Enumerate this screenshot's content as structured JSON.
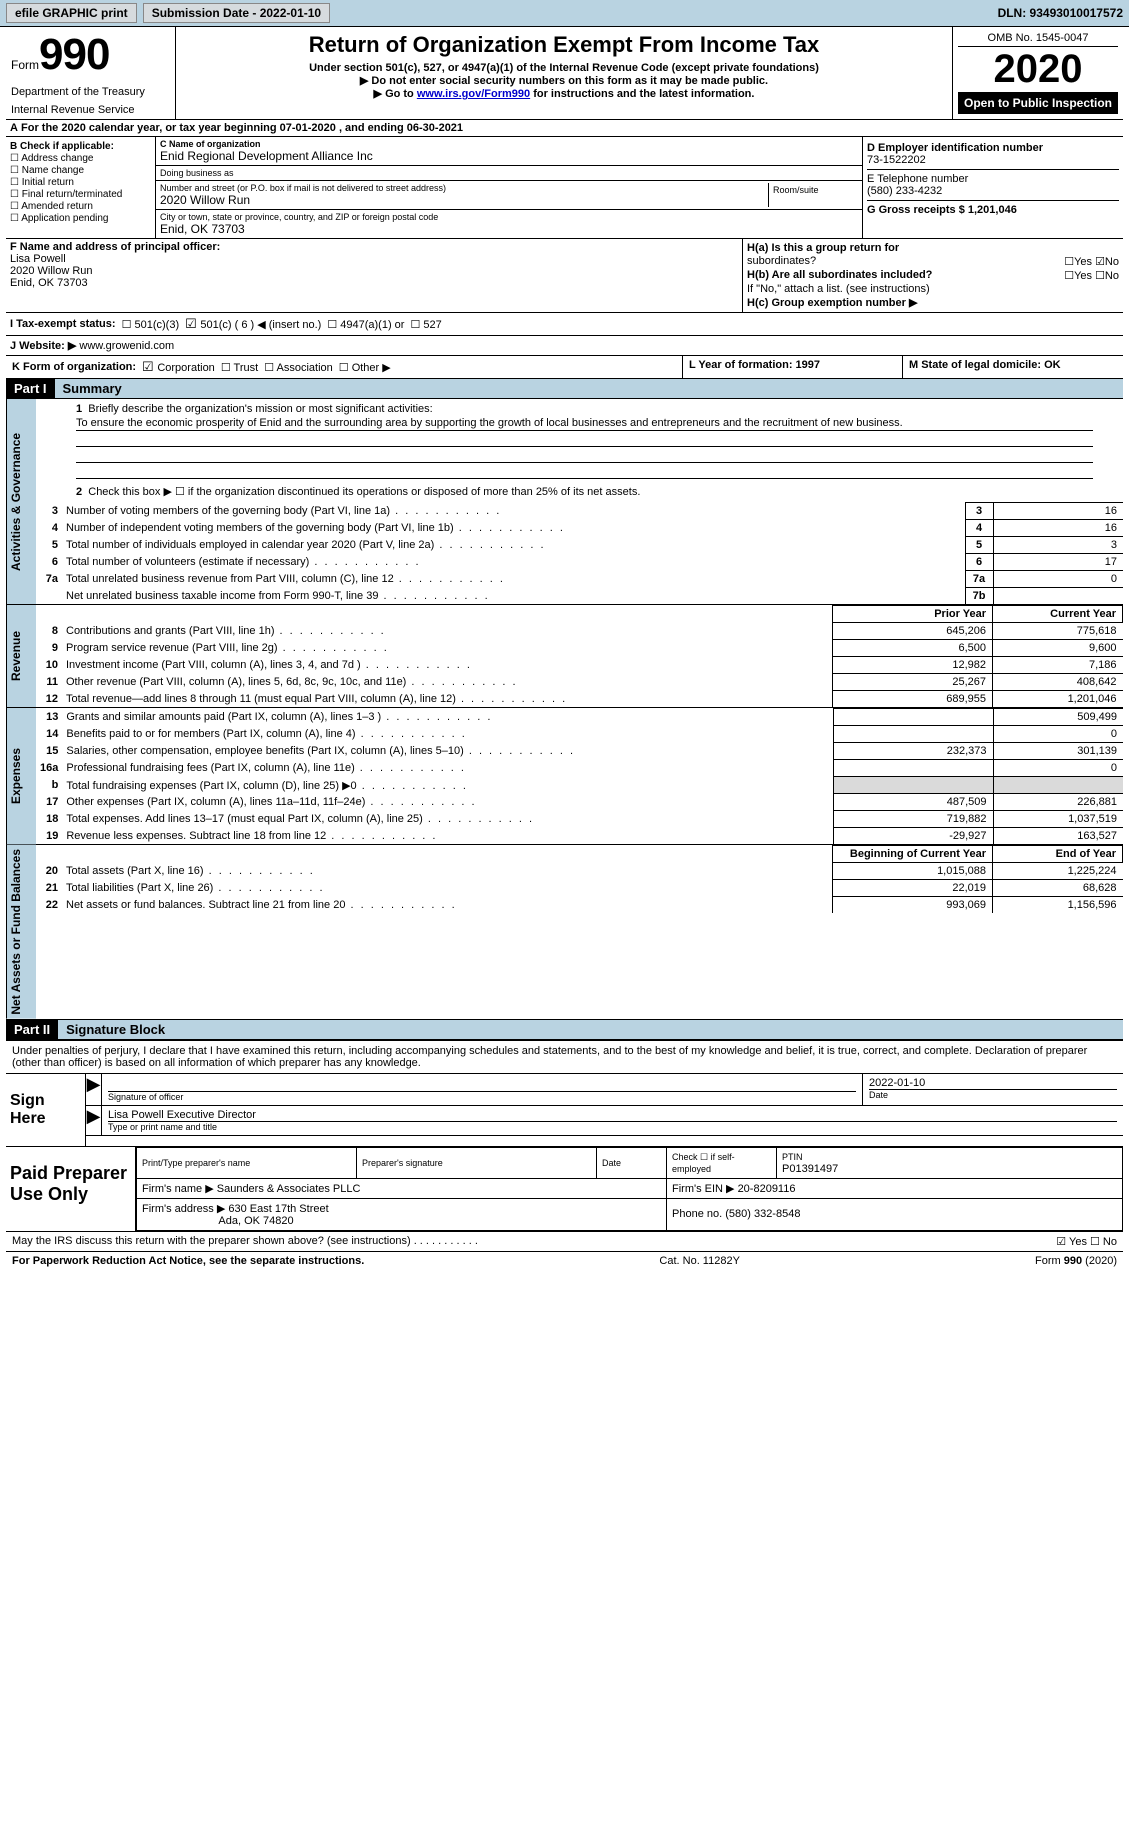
{
  "toolbar": {
    "efile_label": "efile GRAPHIC print",
    "submission_label": "Submission Date - 2022-01-10",
    "dln_label": "DLN: 93493010017572"
  },
  "header": {
    "form_word": "Form",
    "form_number": "990",
    "department": "Department of the Treasury",
    "irs": "Internal Revenue Service",
    "title": "Return of Organization Exempt From Income Tax",
    "subtitle": "Under section 501(c), 527, or 4947(a)(1) of the Internal Revenue Code (except private foundations)",
    "note1": "Do not enter social security numbers on this form as it may be made public.",
    "note2_pre": "Go to ",
    "note2_link": "www.irs.gov/Form990",
    "note2_post": " for instructions and the latest information.",
    "omb": "OMB No. 1545-0047",
    "year": "2020",
    "inspection": "Open to Public Inspection"
  },
  "line_a": "For the 2020 calendar year, or tax year beginning 07-01-2020   , and ending 06-30-2021",
  "sec_b": {
    "title": "B Check if applicable:",
    "opts": [
      "Address change",
      "Name change",
      "Initial return",
      "Final return/terminated",
      "Amended return",
      "Application pending"
    ]
  },
  "sec_c": {
    "name_lbl": "C Name of organization",
    "name_val": "Enid Regional Development Alliance Inc",
    "dba_lbl": "Doing business as",
    "dba_val": "",
    "addr_lbl": "Number and street (or P.O. box if mail is not delivered to street address)",
    "room_lbl": "Room/suite",
    "addr_val": "2020 Willow Run",
    "city_lbl": "City or town, state or province, country, and ZIP or foreign postal code",
    "city_val": "Enid, OK  73703"
  },
  "sec_d": {
    "ein_lbl": "D Employer identification number",
    "ein_val": "73-1522202",
    "tel_lbl": "E Telephone number",
    "tel_val": "(580) 233-4232",
    "gross_lbl": "G Gross receipts $ 1,201,046"
  },
  "sec_f": {
    "lbl": "F  Name and address of principal officer:",
    "name": "Lisa Powell",
    "addr1": "2020 Willow Run",
    "addr2": "Enid, OK  73703"
  },
  "sec_h": {
    "ha_l": "H(a)  Is this a group return for",
    "ha_l2": "subordinates?",
    "ha_yn": "☐Yes ☑No",
    "hb_l": "H(b)  Are all subordinates included?",
    "hb_yn": "☐Yes ☐No",
    "hb_note": "If \"No,\" attach a list. (see instructions)",
    "hc_l": "H(c)  Group exemption number ▶"
  },
  "row_i": {
    "lbl": "I    Tax-exempt status:",
    "o1": "501(c)(3)",
    "o2": "501(c) ( 6 ) ◀ (insert no.)",
    "o3": "4947(a)(1) or",
    "o4": "527"
  },
  "row_j": {
    "lbl": "J   Website: ▶",
    "val": "www.growenid.com"
  },
  "row_k": {
    "lbl": "K Form of organization:",
    "o1": "Corporation",
    "o2": "Trust",
    "o3": "Association",
    "o4": "Other ▶"
  },
  "row_l": "L Year of formation: 1997",
  "row_m": "M State of legal domicile: OK",
  "part1": {
    "label": "Part I",
    "title": "Summary"
  },
  "gov": {
    "label": "Activities & Governance",
    "q1": "Briefly describe the organization's mission or most significant activities:",
    "q1_text": "To ensure the economic prosperity of Enid and the surrounding area by supporting the growth of local businesses and entrepreneurs and the recruitment of new business.",
    "q2": "Check this box ▶ ☐  if the organization discontinued its operations or disposed of more than 25% of its net assets.",
    "rows": [
      {
        "n": "3",
        "d": "Number of voting members of the governing body (Part VI, line 1a)",
        "b": "3",
        "v": "16"
      },
      {
        "n": "4",
        "d": "Number of independent voting members of the governing body (Part VI, line 1b)",
        "b": "4",
        "v": "16"
      },
      {
        "n": "5",
        "d": "Total number of individuals employed in calendar year 2020 (Part V, line 2a)",
        "b": "5",
        "v": "3"
      },
      {
        "n": "6",
        "d": "Total number of volunteers (estimate if necessary)",
        "b": "6",
        "v": "17"
      },
      {
        "n": "7a",
        "d": "Total unrelated business revenue from Part VIII, column (C), line 12",
        "b": "7a",
        "v": "0"
      },
      {
        "n": "",
        "d": "Net unrelated business taxable income from Form 990-T, line 39",
        "b": "7b",
        "v": ""
      }
    ]
  },
  "rev": {
    "label": "Revenue",
    "h1": "Prior Year",
    "h2": "Current Year",
    "rows": [
      {
        "n": "8",
        "d": "Contributions and grants (Part VIII, line 1h)",
        "p": "645,206",
        "c": "775,618"
      },
      {
        "n": "9",
        "d": "Program service revenue (Part VIII, line 2g)",
        "p": "6,500",
        "c": "9,600"
      },
      {
        "n": "10",
        "d": "Investment income (Part VIII, column (A), lines 3, 4, and 7d )",
        "p": "12,982",
        "c": "7,186"
      },
      {
        "n": "11",
        "d": "Other revenue (Part VIII, column (A), lines 5, 6d, 8c, 9c, 10c, and 11e)",
        "p": "25,267",
        "c": "408,642"
      },
      {
        "n": "12",
        "d": "Total revenue—add lines 8 through 11 (must equal Part VIII, column (A), line 12)",
        "p": "689,955",
        "c": "1,201,046"
      }
    ]
  },
  "exp": {
    "label": "Expenses",
    "rows": [
      {
        "n": "13",
        "d": "Grants and similar amounts paid (Part IX, column (A), lines 1–3 )",
        "p": "",
        "c": "509,499"
      },
      {
        "n": "14",
        "d": "Benefits paid to or for members (Part IX, column (A), line 4)",
        "p": "",
        "c": "0"
      },
      {
        "n": "15",
        "d": "Salaries, other compensation, employee benefits (Part IX, column (A), lines 5–10)",
        "p": "232,373",
        "c": "301,139"
      },
      {
        "n": "16a",
        "d": "Professional fundraising fees (Part IX, column (A), line 11e)",
        "p": "",
        "c": "0"
      },
      {
        "n": "b",
        "d": "Total fundraising expenses (Part IX, column (D), line 25) ▶0",
        "p": "GRAY",
        "c": "GRAY"
      },
      {
        "n": "17",
        "d": "Other expenses (Part IX, column (A), lines 11a–11d, 11f–24e)",
        "p": "487,509",
        "c": "226,881"
      },
      {
        "n": "18",
        "d": "Total expenses. Add lines 13–17 (must equal Part IX, column (A), line 25)",
        "p": "719,882",
        "c": "1,037,519"
      },
      {
        "n": "19",
        "d": "Revenue less expenses. Subtract line 18 from line 12",
        "p": "-29,927",
        "c": "163,527"
      }
    ]
  },
  "net": {
    "label": "Net Assets or Fund Balances",
    "h1": "Beginning of Current Year",
    "h2": "End of Year",
    "rows": [
      {
        "n": "20",
        "d": "Total assets (Part X, line 16)",
        "p": "1,015,088",
        "c": "1,225,224"
      },
      {
        "n": "21",
        "d": "Total liabilities (Part X, line 26)",
        "p": "22,019",
        "c": "68,628"
      },
      {
        "n": "22",
        "d": "Net assets or fund balances. Subtract line 21 from line 20",
        "p": "993,069",
        "c": "1,156,596"
      }
    ]
  },
  "part2": {
    "label": "Part II",
    "title": "Signature Block"
  },
  "penalties": "Under penalties of perjury, I declare that I have examined this return, including accompanying schedules and statements, and to the best of my knowledge and belief, it is true, correct, and complete. Declaration of preparer (other than officer) is based on all information of which preparer has any knowledge.",
  "sign": {
    "here": "Sign Here",
    "sig_lbl": "Signature of officer",
    "date_lbl": "Date",
    "date_val": "2022-01-10",
    "name": "Lisa Powell Executive Director",
    "name_lbl": "Type or print name and title"
  },
  "prep": {
    "label": "Paid Preparer Use Only",
    "h_name": "Print/Type preparer's name",
    "h_sig": "Preparer's signature",
    "h_date": "Date",
    "h_chk": "Check ☐ if self-employed",
    "h_ptin": "PTIN",
    "ptin": "P01391497",
    "firm_lbl": "Firm's name    ▶",
    "firm_val": "Saunders & Associates PLLC",
    "ein_lbl": "Firm's EIN ▶",
    "ein_val": "20-8209116",
    "addr_lbl": "Firm's address ▶",
    "addr_val": "630 East 17th Street",
    "addr_val2": "Ada, OK  74820",
    "ph_lbl": "Phone no.",
    "ph_val": "(580) 332-8548"
  },
  "discuss": {
    "q": "May the IRS discuss this return with the preparer shown above? (see instructions)",
    "yn": "☑ Yes  ☐ No"
  },
  "footer": {
    "l": "For Paperwork Reduction Act Notice, see the separate instructions.",
    "c": "Cat. No. 11282Y",
    "r": "Form 990 (2020)"
  },
  "colors": {
    "toolbar_bg": "#b9d3e1",
    "side_bg": "#b9d3e1",
    "gray": "#dadada",
    "black": "#000000",
    "link": "#0000cc"
  }
}
